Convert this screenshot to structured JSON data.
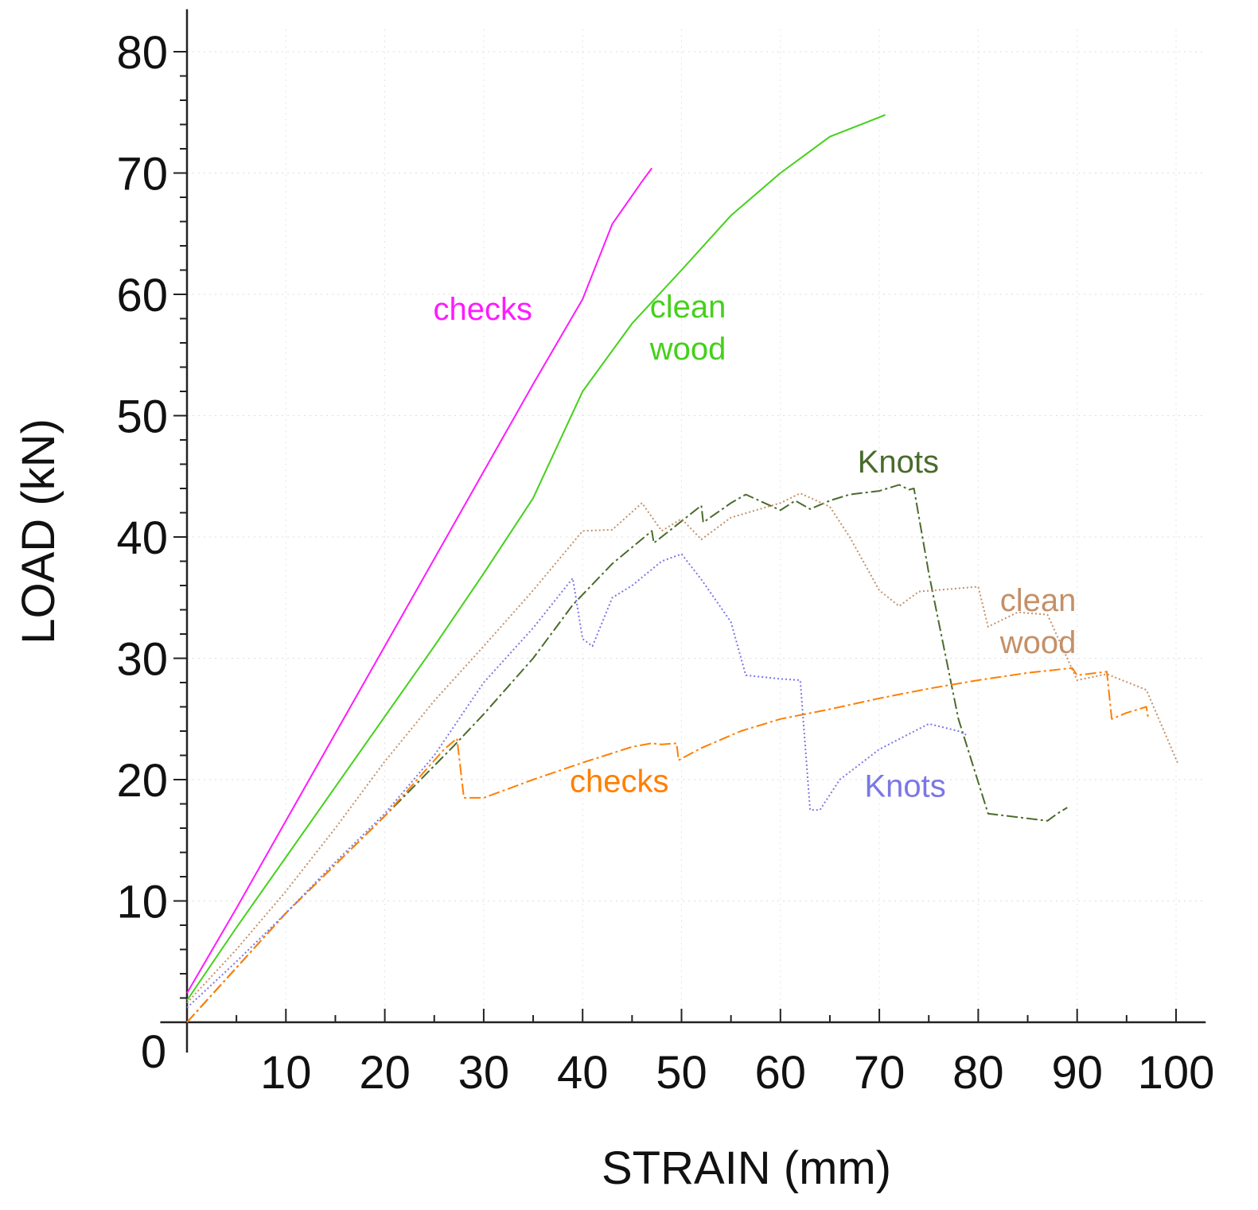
{
  "chart_data": {
    "type": "line",
    "title": "",
    "xlabel": "STRAIN  (mm)",
    "ylabel": "LOAD (kN)",
    "xlim": [
      0,
      103
    ],
    "ylim": [
      0,
      82
    ],
    "xticks": [
      10,
      20,
      30,
      40,
      50,
      60,
      70,
      80,
      90,
      100
    ],
    "yticks": [
      10,
      20,
      30,
      40,
      50,
      60,
      70,
      80
    ],
    "origin_label": "0",
    "grid": true,
    "legend": "none",
    "series": [
      {
        "name": "checks",
        "color": "#ff1aff",
        "style": "solid",
        "label_pos": [
          24.9,
          57.9
        ],
        "points": [
          [
            0,
            2.4
          ],
          [
            5,
            9.4
          ],
          [
            10,
            16.6
          ],
          [
            15,
            23.8
          ],
          [
            20,
            31.0
          ],
          [
            25,
            38.2
          ],
          [
            30,
            45.4
          ],
          [
            35,
            52.6
          ],
          [
            40,
            59.6
          ],
          [
            43,
            65.8
          ],
          [
            46,
            69.3
          ],
          [
            47,
            70.4
          ]
        ]
      },
      {
        "name": "clean wood",
        "color": "#44d11a",
        "style": "solid",
        "label_lines": [
          "clean",
          "wood"
        ],
        "label_pos": [
          46.8,
          58.1
        ],
        "points": [
          [
            0,
            1.8
          ],
          [
            5,
            7.8
          ],
          [
            10,
            13.6
          ],
          [
            15,
            19.4
          ],
          [
            20,
            25.2
          ],
          [
            25,
            31.0
          ],
          [
            30,
            37.0
          ],
          [
            35,
            43.2
          ],
          [
            40,
            52.0
          ],
          [
            45,
            57.6
          ],
          [
            50,
            62.0
          ],
          [
            55,
            66.5
          ],
          [
            60,
            70.0
          ],
          [
            65,
            73.0
          ],
          [
            70,
            74.6
          ],
          [
            70.6,
            74.8
          ]
        ]
      },
      {
        "name": "Knots",
        "color": "#4a6b2c",
        "style": "dashdot",
        "label_pos": [
          67.8,
          45.3
        ],
        "points": [
          [
            0,
            0
          ],
          [
            10,
            9.0
          ],
          [
            20,
            17.0
          ],
          [
            27,
            22.8
          ],
          [
            30,
            25.4
          ],
          [
            35,
            30.0
          ],
          [
            39,
            34.4
          ],
          [
            43,
            37.8
          ],
          [
            47,
            40.5
          ],
          [
            47.2,
            39.5
          ],
          [
            50,
            41.3
          ],
          [
            52,
            42.6
          ],
          [
            52.2,
            41.2
          ],
          [
            55,
            42.8
          ],
          [
            56.5,
            43.5
          ],
          [
            60,
            42.2
          ],
          [
            61.5,
            43.0
          ],
          [
            63,
            42.3
          ],
          [
            65,
            43.0
          ],
          [
            67,
            43.5
          ],
          [
            70,
            43.8
          ],
          [
            72,
            44.3
          ],
          [
            73,
            43.9
          ],
          [
            73.5,
            44.0
          ],
          [
            75,
            37.0
          ],
          [
            78,
            25.0
          ],
          [
            81,
            17.2
          ],
          [
            87,
            16.6
          ],
          [
            88,
            17.2
          ],
          [
            89,
            17.7
          ]
        ]
      },
      {
        "name": "checks",
        "color": "#ff7f00",
        "style": "dashdot",
        "label_pos": [
          38.7,
          19.0
        ],
        "points": [
          [
            0,
            0
          ],
          [
            10,
            9.0
          ],
          [
            20,
            17.0
          ],
          [
            26,
            22.5
          ],
          [
            27.3,
            23.4
          ],
          [
            28,
            18.5
          ],
          [
            30,
            18.5
          ],
          [
            35,
            20.0
          ],
          [
            40,
            21.4
          ],
          [
            45,
            22.7
          ],
          [
            47,
            23.0
          ],
          [
            48,
            22.9
          ],
          [
            49.5,
            23.0
          ],
          [
            49.7,
            21.6
          ],
          [
            52,
            22.6
          ],
          [
            56,
            24.0
          ],
          [
            60,
            25.0
          ],
          [
            65,
            25.8
          ],
          [
            70,
            26.7
          ],
          [
            75,
            27.5
          ],
          [
            80,
            28.2
          ],
          [
            85,
            28.8
          ],
          [
            89.5,
            29.2
          ],
          [
            90,
            28.6
          ],
          [
            93,
            28.9
          ],
          [
            93.5,
            25.0
          ],
          [
            95,
            25.5
          ],
          [
            97,
            26.0
          ],
          [
            97.2,
            25.0
          ]
        ]
      },
      {
        "name": "Knots",
        "color": "#7b77e6",
        "style": "dotted",
        "label_pos": [
          68.5,
          18.6
        ],
        "points": [
          [
            0,
            1.2
          ],
          [
            5,
            5.0
          ],
          [
            10,
            9.0
          ],
          [
            15,
            13.2
          ],
          [
            20,
            17.2
          ],
          [
            25,
            22.0
          ],
          [
            30,
            28.0
          ],
          [
            35,
            32.5
          ],
          [
            39,
            36.6
          ],
          [
            40,
            31.6
          ],
          [
            41,
            31.0
          ],
          [
            43,
            35.0
          ],
          [
            45,
            36.0
          ],
          [
            48,
            38.0
          ],
          [
            50,
            38.6
          ],
          [
            52,
            36.5
          ],
          [
            55,
            33.0
          ],
          [
            56.5,
            28.6
          ],
          [
            60,
            28.3
          ],
          [
            62,
            28.2
          ],
          [
            63,
            17.5
          ],
          [
            64,
            17.5
          ],
          [
            66,
            20.0
          ],
          [
            70,
            22.5
          ],
          [
            75,
            24.6
          ],
          [
            78,
            24.0
          ],
          [
            79,
            23.6
          ]
        ]
      },
      {
        "name": "clean wood",
        "color": "#c49068",
        "style": "dotted",
        "label_lines": [
          "clean",
          "wood"
        ],
        "label_pos": [
          82.2,
          33.9
        ],
        "points": [
          [
            0,
            1.6
          ],
          [
            5,
            6.0
          ],
          [
            10,
            10.8
          ],
          [
            15,
            16.0
          ],
          [
            20,
            21.5
          ],
          [
            25,
            26.5
          ],
          [
            30,
            31.0
          ],
          [
            35,
            35.6
          ],
          [
            40,
            40.5
          ],
          [
            43,
            40.6
          ],
          [
            46,
            42.8
          ],
          [
            48,
            40.5
          ],
          [
            50,
            41.5
          ],
          [
            52,
            39.8
          ],
          [
            55,
            41.6
          ],
          [
            60,
            42.8
          ],
          [
            62,
            43.6
          ],
          [
            65,
            42.5
          ],
          [
            67,
            40.0
          ],
          [
            70,
            35.6
          ],
          [
            72,
            34.3
          ],
          [
            74,
            35.5
          ],
          [
            77,
            35.7
          ],
          [
            80,
            35.9
          ],
          [
            81,
            32.6
          ],
          [
            84,
            33.8
          ],
          [
            87,
            33.6
          ],
          [
            90,
            28.2
          ],
          [
            93,
            28.7
          ],
          [
            97,
            27.4
          ],
          [
            100.2,
            21.3
          ]
        ]
      }
    ]
  }
}
